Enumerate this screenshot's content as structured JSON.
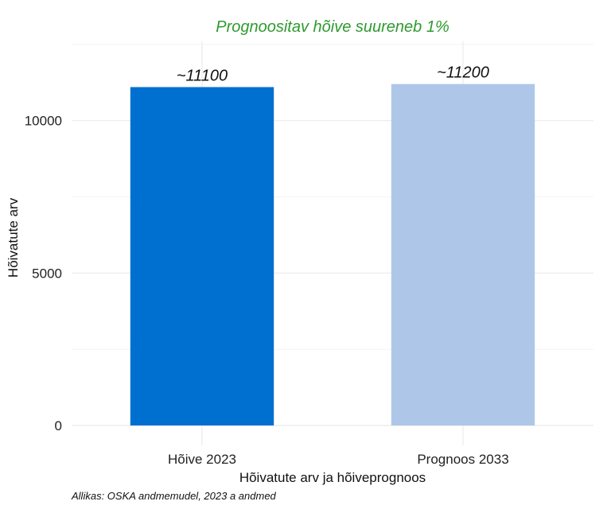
{
  "chart_data": {
    "type": "bar",
    "subtitle": "Prognoositav hõive suureneb 1%",
    "categories": [
      "Hõive 2023",
      "Prognoos 2033"
    ],
    "values": [
      11100,
      11200
    ],
    "data_labels": [
      "~11100",
      "~11200"
    ],
    "colors": [
      "#0070d0",
      "#aec7e8"
    ],
    "xlabel": "Hõivatute arv ja hõiveprognoos",
    "ylabel": "Hõivatute arv",
    "yticks": [
      0,
      5000,
      10000
    ],
    "ylim": [
      0,
      12600
    ],
    "grid": true,
    "caption": "Allikas: OSKA andmemudel, 2023 a andmed",
    "subtitle_color": "#2e9a2e"
  }
}
